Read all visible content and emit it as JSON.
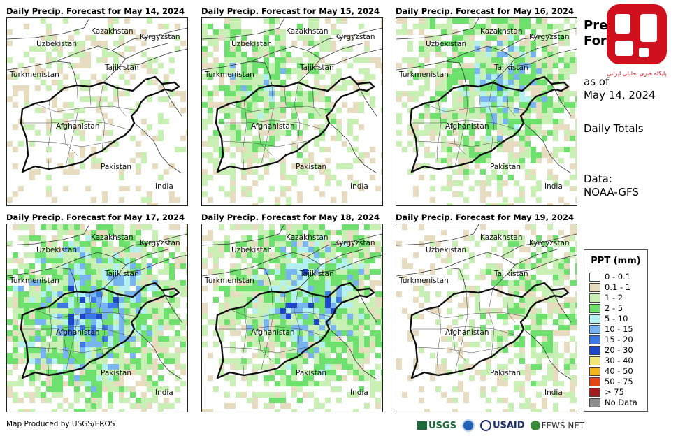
{
  "panels": [
    {
      "title": "Daily Precip. Forecast for May 14, 2024"
    },
    {
      "title": "Daily Precip. Forecast for May 15, 2024"
    },
    {
      "title": "Daily Precip. Forecast for May 16, 2024"
    },
    {
      "title": "Daily Precip. Forecast for May 17, 2024"
    },
    {
      "title": "Daily Precip. Forecast for May 18, 2024"
    },
    {
      "title": "Daily Precip. Forecast for May 19, 2024"
    }
  ],
  "map_labels": {
    "kazakhstan": "Kazakhstan",
    "kyrgyzstan": "Kyrgyzstan",
    "uzbekistan": "Uzbekistan",
    "tajikistan": "Tajikistan",
    "turkmenistan": "Turkmenistan",
    "afghanistan": "Afghanistan",
    "pakistan": "Pakistan",
    "india": "India"
  },
  "side_info": {
    "title_line1": "Precip",
    "title_line2": "Forecast",
    "as_of": "as of",
    "date": "May 14, 2024",
    "totals": "Daily Totals",
    "data_label": "Data:",
    "data_source": "NOAA-GFS"
  },
  "legend": {
    "title": "PPT (mm)",
    "items": [
      {
        "label": "0 - 0.1",
        "color": "#ffffff"
      },
      {
        "label": "0.1 - 1",
        "color": "#e8dcc0"
      },
      {
        "label": "1 - 2",
        "color": "#c8f0b4"
      },
      {
        "label": "2 - 5",
        "color": "#6ee06e"
      },
      {
        "label": "5 - 10",
        "color": "#b4f0f0"
      },
      {
        "label": "10 - 15",
        "color": "#78b4f0"
      },
      {
        "label": "15 - 20",
        "color": "#3c78e6"
      },
      {
        "label": "20 - 30",
        "color": "#1e46c8"
      },
      {
        "label": "30 - 40",
        "color": "#f0e678"
      },
      {
        "label": "40 - 50",
        "color": "#f0b41e"
      },
      {
        "label": "50 - 75",
        "color": "#e64614"
      },
      {
        "label": "> 75",
        "color": "#a01e1e"
      },
      {
        "label": "No Data",
        "color": "#8c8c8c"
      }
    ]
  },
  "footer": {
    "credit": "Map Produced by USGS/EROS",
    "logo_usgs": "USGS",
    "logo_usaid": "USAID",
    "logo_fews": "FEWS NET"
  },
  "watermark": {
    "caption": "پایگاه خبری تحلیلی ایرانی",
    "color": "#d0101c"
  }
}
